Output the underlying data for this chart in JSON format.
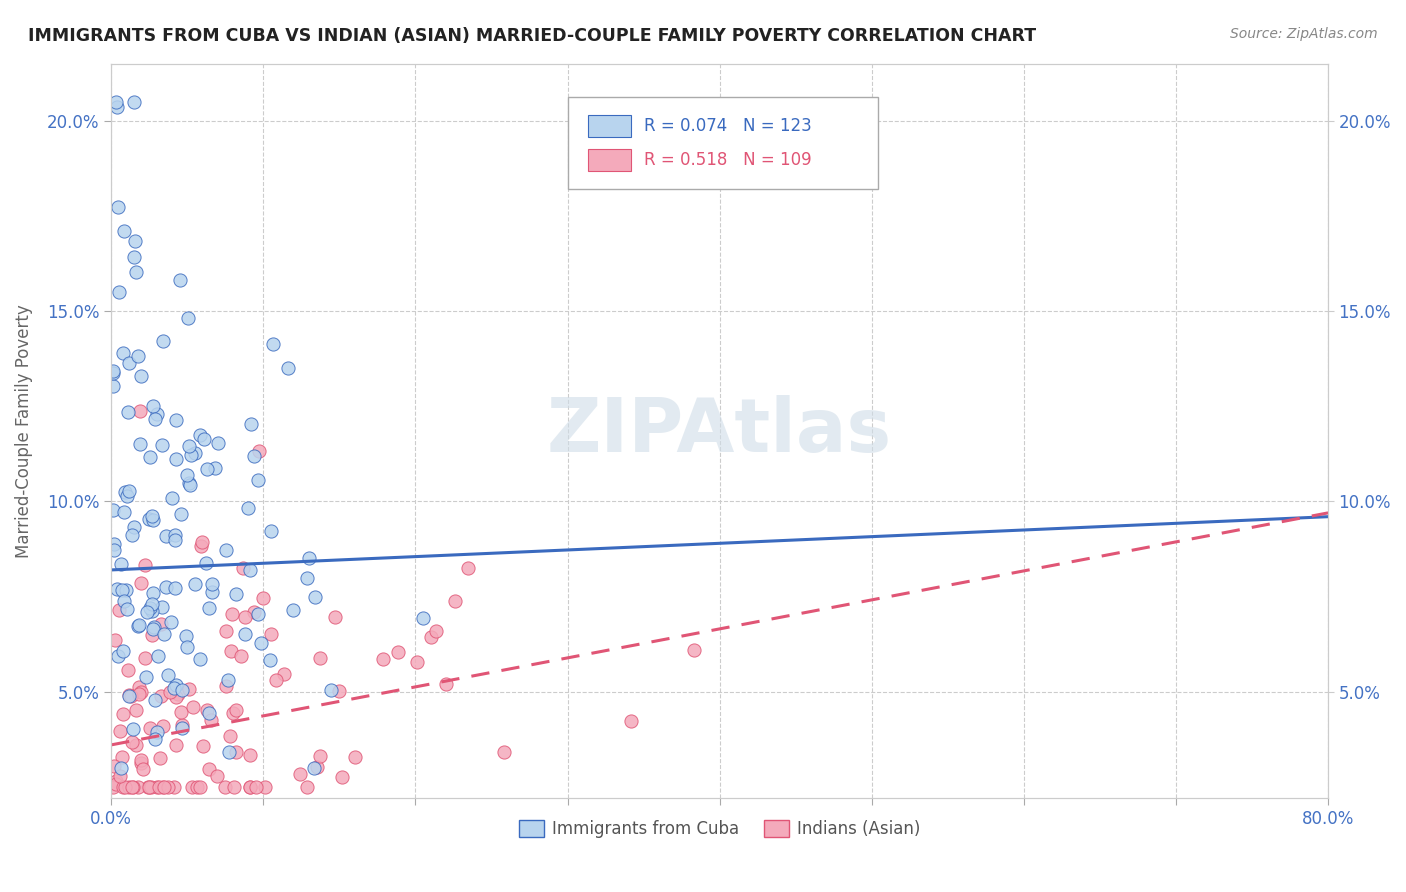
{
  "title": "IMMIGRANTS FROM CUBA VS INDIAN (ASIAN) MARRIED-COUPLE FAMILY POVERTY CORRELATION CHART",
  "source": "Source: ZipAtlas.com",
  "ylabel": "Married-Couple Family Poverty",
  "xmin": 0.0,
  "xmax": 0.8,
  "ymin": 0.022,
  "ymax": 0.215,
  "cuba_R": 0.074,
  "cuba_N": 123,
  "indian_R": 0.518,
  "indian_N": 109,
  "cuba_color": "#b8d4ee",
  "indian_color": "#f4aabb",
  "cuba_line_color": "#3a6abf",
  "indian_line_color": "#e05575",
  "cuba_trend_x0": 0.0,
  "cuba_trend_y0": 0.082,
  "cuba_trend_x1": 0.8,
  "cuba_trend_y1": 0.096,
  "indian_trend_x0": 0.0,
  "indian_trend_y0": 0.036,
  "indian_trend_x1": 0.8,
  "indian_trend_y1": 0.097
}
